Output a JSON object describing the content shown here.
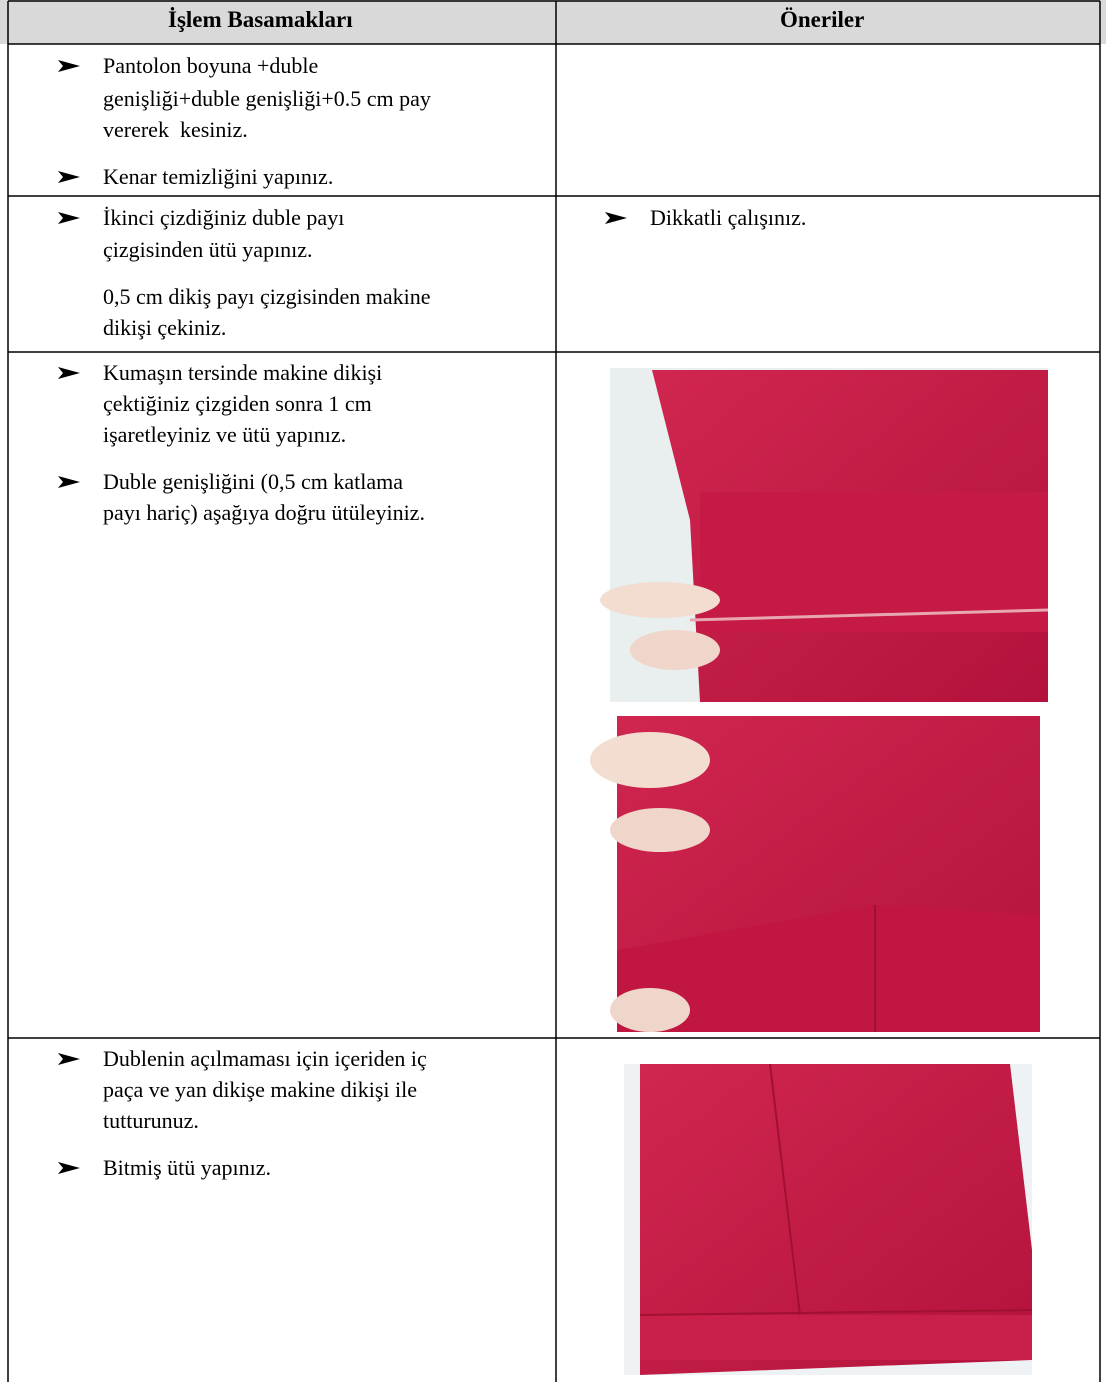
{
  "table": {
    "header": [
      "İşlem Basamakları",
      "Öneriler"
    ],
    "rows": [
      {
        "steps": [
          [
            "Pantolon boyuna +duble",
            "genişliği+duble genişliği+0.5 cm pay",
            "vererek  kesiniz."
          ],
          [
            "Kenar temizliğini yapınız."
          ]
        ]
      },
      {
        "steps": [
          [
            "İkinci çizdiğiniz duble payı",
            "çizgisinden ütü yapınız."
          ],
          [
            "0,5 cm dikiş payı çizgisinden makine",
            "dikişi çekiniz."
          ]
        ],
        "suggestions": [
          [
            "Dikkatli çalışınız."
          ]
        ]
      },
      {
        "steps": [
          [
            "Kumaşın tersinde makine dikişi",
            "çektiğiniz çizgiden sonra 1 cm",
            "işaretleyiniz ve ütü yapınız."
          ],
          [
            "Duble genişliğini (0,5 cm katlama",
            "payı hariç) aşağıya doğru ütüleyiniz."
          ]
        ]
      },
      {
        "steps": [
          [
            "Dublenin açılmaması için içeriden iç",
            "paça ve yan dikişe makine dikişi ile",
            "tutturunuz."
          ],
          [
            "Bitmiş ütü yapınız."
          ]
        ]
      }
    ]
  }
}
